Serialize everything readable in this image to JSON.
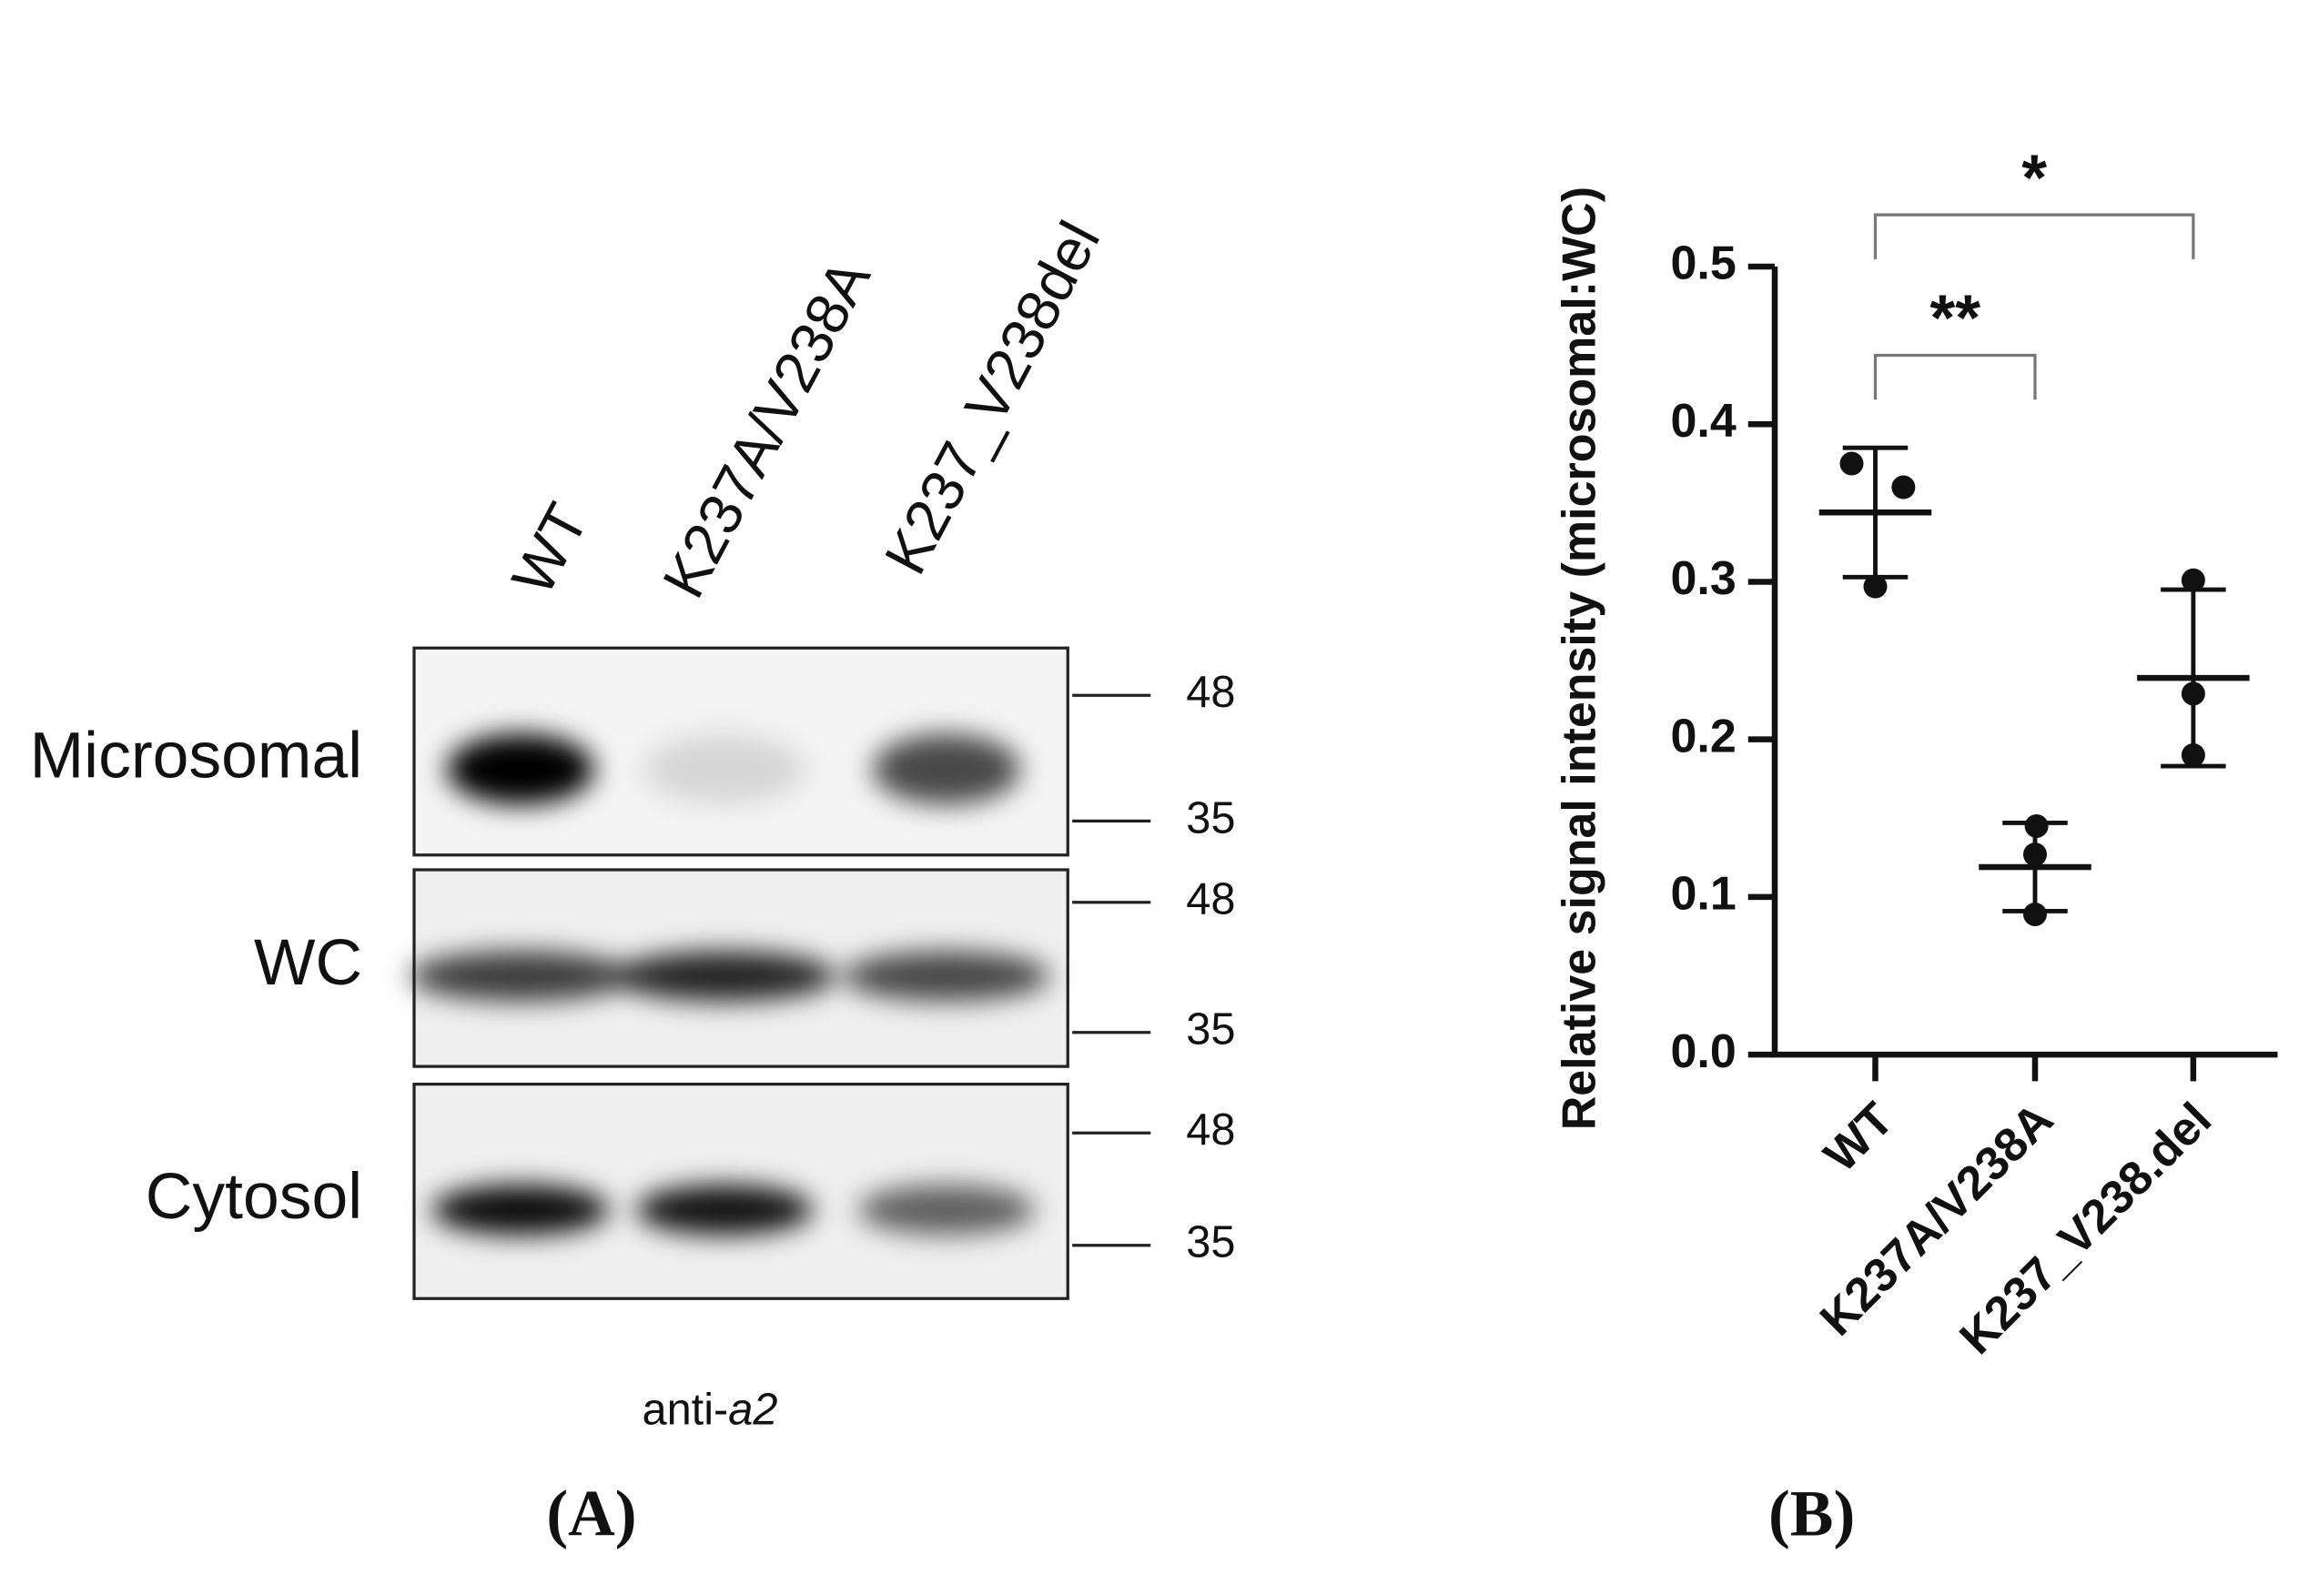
{
  "blot": {
    "lanes": [
      "WT",
      "K237A/V238A",
      "K237_V238del"
    ],
    "rows": [
      {
        "label": "Microsomal",
        "markers": [
          48,
          35
        ]
      },
      {
        "label": "WC",
        "markers": [
          48,
          35
        ]
      },
      {
        "label": "Cytosol",
        "markers": [
          48,
          35
        ]
      }
    ],
    "caption": {
      "prefix": "anti-",
      "italic": "a2"
    },
    "panel_label": "(A)"
  },
  "chart_data": {
    "type": "scatter",
    "y_label": "Relative signal intensity (microsomal:WC)",
    "categories": [
      "WT",
      "K237A/V238A",
      "K237_V238.del"
    ],
    "points": [
      [
        0.375,
        0.36,
        0.297
      ],
      [
        0.145,
        0.127,
        0.089
      ],
      [
        0.301,
        0.229,
        0.19
      ]
    ],
    "means": [
      0.344,
      0.119,
      0.239
    ],
    "errors": [
      0.041,
      0.028,
      0.056
    ],
    "ylim": [
      0,
      0.5
    ],
    "yticks": [
      {
        "value": 0,
        "label": "0.0"
      },
      0.1,
      0.2,
      0.3,
      0.4,
      0.5
    ],
    "color": "#111111",
    "annotations": [
      {
        "text": "**",
        "from": 0,
        "to": 1
      },
      {
        "text": "*",
        "from": 0,
        "to": 2
      }
    ],
    "panel_label": "(B)"
  }
}
